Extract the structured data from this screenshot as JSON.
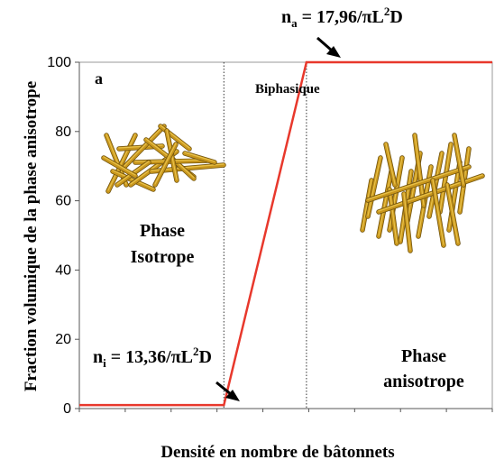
{
  "chart_data": {
    "type": "line",
    "title": "",
    "ylabel": "Fraction volumique de la phase anisotrope",
    "xlabel": "Densité en nombre de bâtonnets",
    "ylim": [
      0,
      100
    ],
    "yticks": [
      "0",
      "20",
      "40",
      "60",
      "80",
      "100"
    ],
    "panel_label": "a",
    "series": [
      {
        "color": "#e8382c",
        "points": [
          [
            0,
            1
          ],
          [
            0.35,
            1
          ],
          [
            0.55,
            100
          ],
          [
            1,
            100
          ]
        ]
      }
    ],
    "region_boundaries": [
      0.35,
      0.55
    ],
    "region_labels": {
      "isotrope": [
        "Phase",
        "Isotrope"
      ],
      "biphasique": "Biphasique",
      "anisotrope": [
        "Phase",
        "anisotrope"
      ]
    },
    "annotations": {
      "ni_sym": "n",
      "ni_sub": "i",
      "ni_eq": " = 13,36/πL",
      "ni_sup": "2",
      "ni_end": "D",
      "na_sym": "n",
      "na_sub": "a",
      "na_eq": " = 17,96/πL",
      "na_sup": "2",
      "na_end": "D"
    },
    "colors": {
      "line": "#e8382c",
      "rod": "#c8961c",
      "rod_highlight": "#f0cc55"
    }
  }
}
